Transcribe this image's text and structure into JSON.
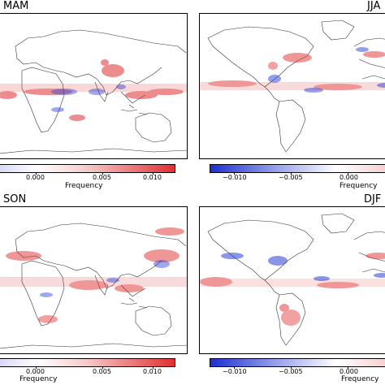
{
  "colors": {
    "positive": "#e03030",
    "negative": "#2b3fd6",
    "coast": "#333333"
  },
  "panels": [
    {
      "key": "mam",
      "title": "MAM",
      "cbar_ticks": [
        "0.000",
        "0.005",
        "0.010"
      ],
      "cbar_label": "Frequency",
      "scheme": "red"
    },
    {
      "key": "jja",
      "title": "JJA",
      "cbar_ticks": [
        "−0.010",
        "−0.005",
        "0.000"
      ],
      "cbar_label": "Frequency",
      "scheme": "blue"
    },
    {
      "key": "son",
      "title": "SON",
      "cbar_ticks": [
        "0.000",
        "0.005",
        "0.010"
      ],
      "cbar_label": "Frequency",
      "scheme": "red"
    },
    {
      "key": "djf",
      "title": "DJF",
      "cbar_ticks": [
        "−0.010",
        "−0.005",
        "0.000"
      ],
      "cbar_label": "Frequency",
      "scheme": "blue"
    }
  ]
}
